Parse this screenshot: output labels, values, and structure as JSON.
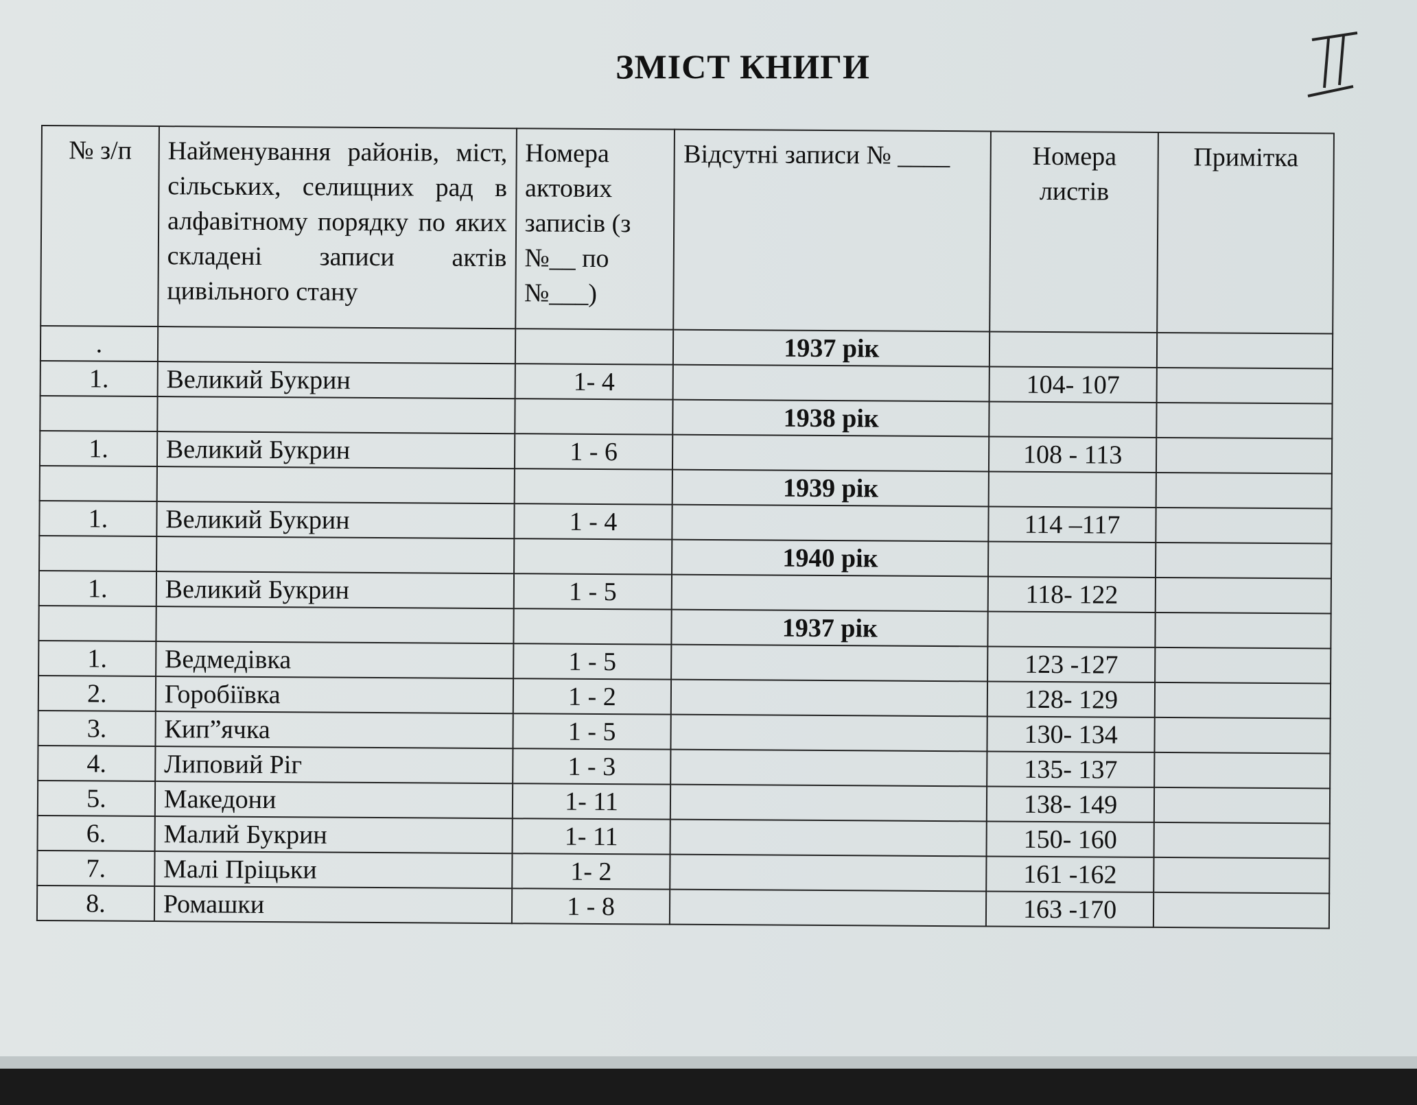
{
  "title": "ЗМІСТ КНИГИ",
  "handwritten_mark": "II",
  "headers": [
    "№ з/п",
    "Найменування районів, міст, сільських, селищних рад в алфавітному порядку по яких складені записи актів цивільного стану",
    "Номера актових записів (з №__ по №___)",
    "Відсутні записи № ____",
    "Номера листів",
    "Примітка"
  ],
  "rows": [
    {
      "num": ".",
      "name": "",
      "records": "",
      "missing": "1937 рік",
      "sheets": "",
      "note": ""
    },
    {
      "num": "1.",
      "name": "Великий Букрин",
      "records": "1-  4",
      "missing": "",
      "sheets": "104- 107",
      "note": ""
    },
    {
      "num": "",
      "name": "",
      "records": "",
      "missing": "1938 рік",
      "sheets": "",
      "note": ""
    },
    {
      "num": "1.",
      "name": "Великий Букрин",
      "records": "1 - 6",
      "missing": "",
      "sheets": "108 - 113",
      "note": ""
    },
    {
      "num": "",
      "name": "",
      "records": "",
      "missing": "1939 рік",
      "sheets": "",
      "note": ""
    },
    {
      "num": "1.",
      "name": "Великий Букрин",
      "records": "1 - 4",
      "missing": "",
      "sheets": "114 –117",
      "note": ""
    },
    {
      "num": "",
      "name": "",
      "records": "",
      "missing": "1940 рік",
      "sheets": "",
      "note": ""
    },
    {
      "num": "1.",
      "name": "Великий Букрин",
      "records": "1 - 5",
      "missing": "",
      "sheets": "118- 122",
      "note": ""
    },
    {
      "num": "",
      "name": "",
      "records": "",
      "missing": "1937 рік",
      "sheets": "",
      "note": ""
    },
    {
      "num": "1.",
      "name": "Ведмедівка",
      "records": "1 - 5",
      "missing": "",
      "sheets": "123 -127",
      "note": ""
    },
    {
      "num": "2.",
      "name": "Горобіївка",
      "records": "1 - 2",
      "missing": "",
      "sheets": "128- 129",
      "note": ""
    },
    {
      "num": "3.",
      "name": "Кип”ячка",
      "records": "1 - 5",
      "missing": "",
      "sheets": "130- 134",
      "note": ""
    },
    {
      "num": "4.",
      "name": "Липовий Ріг",
      "records": "1 - 3",
      "missing": "",
      "sheets": "135- 137",
      "note": ""
    },
    {
      "num": "5.",
      "name": "Македони",
      "records": "1-  11",
      "missing": "",
      "sheets": "138- 149",
      "note": ""
    },
    {
      "num": "6.",
      "name": "Малий Букрин",
      "records": "1-   11",
      "missing": "",
      "sheets": "150- 160",
      "note": ""
    },
    {
      "num": "7.",
      "name": "Малі Пріцьки",
      "records": "1-  2",
      "missing": "",
      "sheets": "161 -162",
      "note": ""
    },
    {
      "num": "8.",
      "name": "Ромашки",
      "records": "1 - 8",
      "missing": "",
      "sheets": "163 -170",
      "note": ""
    }
  ]
}
